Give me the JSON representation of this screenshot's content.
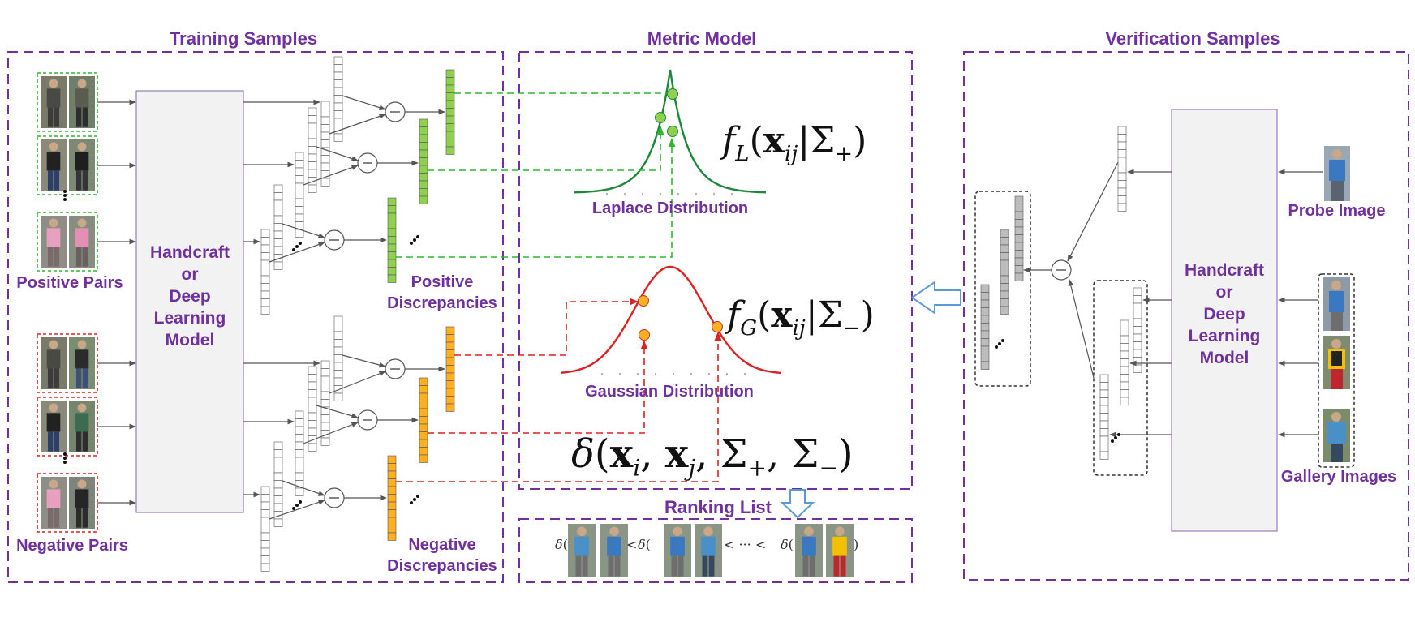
{
  "sections": {
    "training": "Training Samples",
    "metric": "Metric Model",
    "verification": "Verification Samples",
    "ranking": "Ranking List"
  },
  "labels": {
    "positive_pairs": "Positive Pairs",
    "negative_pairs": "Negative Pairs",
    "model_left": "Handcraft\nor\nDeep\nLearning\nModel",
    "model_right": "Handcraft\nor\nDeep\nLearning\nModel",
    "positive_discrepancies": "Positive\nDiscrepancies",
    "negative_discrepancies": "Negative\nDiscrepancies",
    "laplace": "Laplace Distribution",
    "gaussian": "Gaussian Distribution",
    "probe": "Probe Image",
    "gallery": "Gallery Images"
  },
  "formulas": {
    "laplace_fn": "f",
    "laplace_sub": "L",
    "gauss_fn": "f",
    "gauss_sub": "G",
    "x_bold": "x",
    "x_sub": "ij",
    "sigma_plus": "Σ",
    "plus": "+",
    "minus": "−",
    "delta": "δ",
    "xi_sub": "i",
    "xj_sub": "j"
  },
  "ranking": {
    "delta": "δ",
    "less": "<",
    "ellipsis": "< ··· <"
  },
  "operators": {
    "subtract": "−"
  },
  "colors": {
    "purple": "#7030a0",
    "positive": "#8fd14f",
    "negative": "#ffb020",
    "green_dist": "#1a8a3a",
    "red_dist": "#e02020",
    "feature_gray": "#bdbdbd",
    "arrow_blue": "#5b9bd5"
  }
}
